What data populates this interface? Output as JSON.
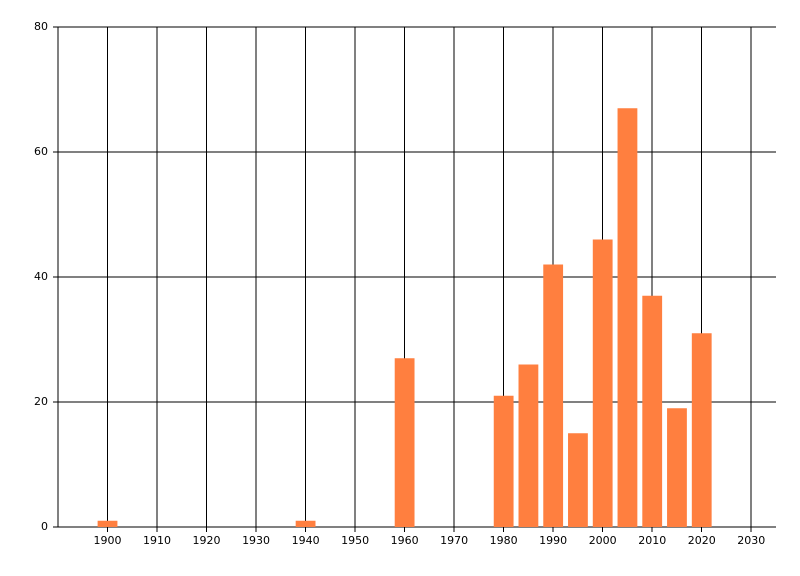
{
  "chart_data": {
    "type": "bar",
    "x": [
      1900,
      1940,
      1960,
      1980,
      1985,
      1990,
      1995,
      2000,
      2005,
      2010,
      2015,
      2020
    ],
    "values": [
      1,
      1,
      27,
      21,
      26,
      42,
      15,
      46,
      67,
      37,
      19,
      31
    ],
    "color": "#ff7f3f",
    "xlim": [
      1890,
      2035
    ],
    "xticks": [
      1900,
      1910,
      1920,
      1930,
      1940,
      1950,
      1960,
      1970,
      1980,
      1990,
      2000,
      2010,
      2020,
      2030
    ],
    "ylim": [
      0,
      80
    ],
    "yticks": [
      0,
      20,
      40,
      60,
      80
    ],
    "grid": true
  }
}
